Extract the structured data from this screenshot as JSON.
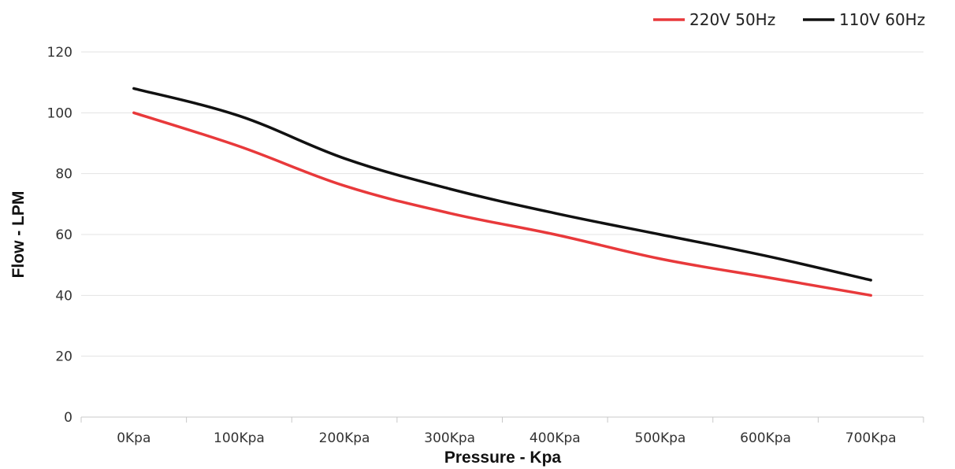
{
  "chart_data": {
    "type": "line",
    "title": "",
    "xlabel": "Pressure  -  Kpa",
    "ylabel": "Flow  -  LPM",
    "categories": [
      "0Kpa",
      "100Kpa",
      "200Kpa",
      "300Kpa",
      "400Kpa",
      "500Kpa",
      "600Kpa",
      "700Kpa"
    ],
    "ylim": [
      0,
      120
    ],
    "yticks": [
      "0",
      "20",
      "40",
      "60",
      "80",
      "100",
      "120"
    ],
    "grid": true,
    "legend_position": "top-right",
    "series": [
      {
        "name": "220V 50Hz",
        "color": "#e8393b",
        "values": [
          100,
          89,
          76,
          67,
          60,
          52,
          46,
          40
        ]
      },
      {
        "name": "110V 60Hz",
        "color": "#111111",
        "values": [
          108,
          99,
          85,
          75,
          67,
          60,
          53,
          45
        ]
      }
    ]
  }
}
